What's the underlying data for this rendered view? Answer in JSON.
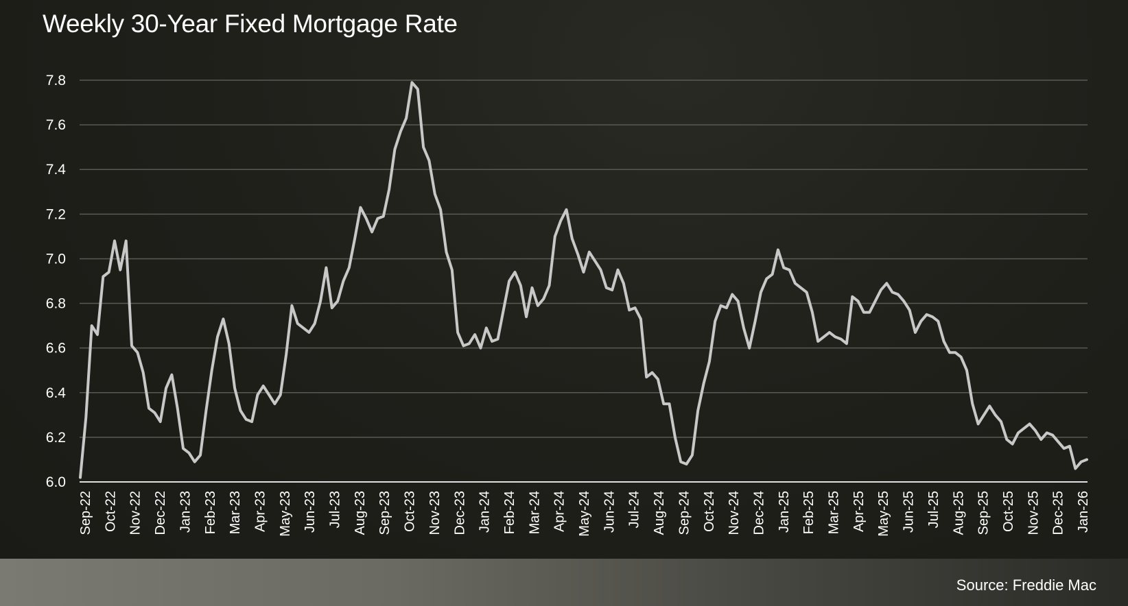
{
  "colors": {
    "background": "#1f1f1a",
    "line": "#c8c8c8",
    "grid": "#5a5a55",
    "text": "#ffffff"
  },
  "source": "Source: Freddie Mac",
  "chart_data": {
    "type": "line",
    "title": "Weekly 30-Year Fixed Mortgage Rate",
    "xlabel": "",
    "ylabel": "",
    "ylim": [
      6.0,
      7.8
    ],
    "yticks": [
      "6.0",
      "6.2",
      "6.4",
      "6.6",
      "6.8",
      "7.0",
      "7.2",
      "7.4",
      "7.6",
      "7.8"
    ],
    "grid": "horizontal",
    "xtick_labels": [
      "Sep-22",
      "Oct-22",
      "Nov-22",
      "Dec-22",
      "Jan-23",
      "Feb-23",
      "Mar-23",
      "Apr-23",
      "May-23",
      "Jun-23",
      "Jul-23",
      "Aug-23",
      "Sep-23",
      "Oct-23",
      "Nov-23",
      "Dec-23",
      "Jan-24",
      "Feb-24",
      "Mar-24",
      "Apr-24",
      "May-24",
      "Jun-24",
      "Jul-24",
      "Aug-24",
      "Sep-24",
      "Oct-24",
      "Nov-24",
      "Dec-24",
      "Jan-25",
      "Feb-25",
      "Mar-25",
      "Apr-25",
      "May-25",
      "Jun-25",
      "Jul-25",
      "Aug-25",
      "Sep-25",
      "Oct-25",
      "Nov-25",
      "Dec-25",
      "Jan-26"
    ],
    "series": [
      {
        "values": [
          6.02,
          6.29,
          6.7,
          6.66,
          6.92,
          6.94,
          7.08,
          6.95,
          7.08,
          6.61,
          6.58,
          6.49,
          6.33,
          6.31,
          6.27,
          6.42,
          6.48,
          6.33,
          6.15,
          6.13,
          6.09,
          6.12,
          6.32,
          6.5,
          6.65,
          6.73,
          6.62,
          6.42,
          6.32,
          6.28,
          6.27,
          6.39,
          6.43,
          6.39,
          6.35,
          6.39,
          6.57,
          6.79,
          6.71,
          6.69,
          6.67,
          6.71,
          6.81,
          6.96,
          6.78,
          6.81,
          6.9,
          6.96,
          7.09,
          7.23,
          7.18,
          7.12,
          7.18,
          7.19,
          7.31,
          7.49,
          7.57,
          7.63,
          7.79,
          7.76,
          7.5,
          7.44,
          7.29,
          7.22,
          7.03,
          6.95,
          6.67,
          6.61,
          6.62,
          6.66,
          6.6,
          6.69,
          6.63,
          6.64,
          6.77,
          6.9,
          6.94,
          6.88,
          6.74,
          6.87,
          6.79,
          6.82,
          6.88,
          7.1,
          7.17,
          7.22,
          7.09,
          7.02,
          6.94,
          7.03,
          6.99,
          6.95,
          6.87,
          6.86,
          6.95,
          6.89,
          6.77,
          6.78,
          6.73,
          6.47,
          6.49,
          6.46,
          6.35,
          6.35,
          6.2,
          6.09,
          6.08,
          6.12,
          6.32,
          6.44,
          6.54,
          6.72,
          6.79,
          6.78,
          6.84,
          6.81,
          6.69,
          6.6,
          6.72,
          6.85,
          6.91,
          6.93,
          7.04,
          6.96,
          6.95,
          6.89,
          6.87,
          6.85,
          6.76,
          6.63,
          6.65,
          6.67,
          6.65,
          6.64,
          6.62,
          6.83,
          6.81,
          6.76,
          6.76,
          6.81,
          6.86,
          6.89,
          6.85,
          6.84,
          6.81,
          6.77,
          6.67,
          6.72,
          6.75,
          6.74,
          6.72,
          6.63,
          6.58,
          6.58,
          6.56,
          6.5,
          6.35,
          6.26,
          6.3,
          6.34,
          6.3,
          6.27,
          6.19,
          6.17,
          6.22,
          6.24,
          6.26,
          6.23,
          6.19,
          6.22,
          6.21,
          6.18,
          6.15,
          6.16,
          6.06,
          6.09,
          6.1
        ]
      }
    ]
  }
}
